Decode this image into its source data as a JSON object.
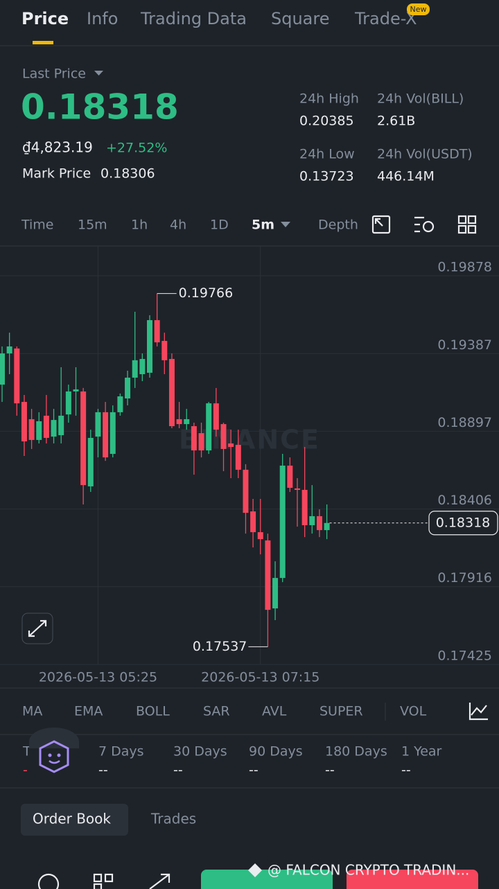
{
  "tabs": [
    "Price",
    "Info",
    "Trading Data",
    "Square",
    "Trade-X"
  ],
  "new_badge": "New",
  "ticker": {
    "last_price_label": "Last Price",
    "last_price": "0.18318",
    "fiat_price": "₫4,823.19",
    "change": "+27.52%",
    "mark_price_label": "Mark Price",
    "mark_price": "0.18306"
  },
  "stats": [
    {
      "label": "24h High",
      "value": "0.20385"
    },
    {
      "label": "24h Vol(BILL)",
      "value": "2.61B"
    },
    {
      "label": "24h Low",
      "value": "0.13723"
    },
    {
      "label": "24h Vol(USDT)",
      "value": "446.14M"
    }
  ],
  "intervals": [
    "Time",
    "15m",
    "1h",
    "4h",
    "1D",
    "5m",
    "Depth"
  ],
  "chart_data": {
    "type": "candlestick",
    "watermark": "BINANCE",
    "categories": [
      null,
      null,
      null,
      null,
      null,
      null,
      null,
      null,
      null,
      null,
      null,
      null,
      null,
      "2026-05-13 05:25",
      null,
      null,
      null,
      null,
      null,
      null,
      null,
      null,
      null,
      null,
      null,
      null,
      null,
      null,
      null,
      null,
      null,
      null,
      null,
      null,
      null,
      "2026-05-13 07:15",
      null,
      null,
      null,
      null,
      null,
      null,
      null,
      null,
      null
    ],
    "open": [
      0.19191,
      0.19388,
      0.19419,
      0.19082,
      0.18973,
      0.18842,
      0.18995,
      0.18863,
      0.18872,
      0.19003,
      0.19148,
      0.19148,
      0.18549,
      0.18863,
      0.19017,
      0.18754,
      0.19017,
      0.19104,
      0.19235,
      0.19257,
      0.19266,
      0.19598,
      0.19467,
      0.19353,
      0.18973,
      0.18942,
      0.18929,
      0.18885,
      0.18776,
      0.19073,
      0.18942,
      0.1882,
      0.18811,
      0.18654,
      0.18391,
      0.1826,
      0.18208,
      0.17779,
      0.17971,
      0.1868,
      0.18536,
      0.18527,
      0.18304,
      0.18361,
      0.18273
    ],
    "high": [
      0.19432,
      0.19519,
      0.19432,
      0.19126,
      0.19038,
      0.19017,
      0.19126,
      0.19038,
      0.19301,
      0.19191,
      0.19301,
      0.1917,
      0.18907,
      0.19038,
      0.19082,
      0.1906,
      0.19135,
      0.19279,
      0.19651,
      0.19388,
      0.19629,
      0.19766,
      0.19519,
      0.19388,
      0.19082,
      0.19038,
      0.18951,
      0.18951,
      0.19082,
      0.1917,
      0.18951,
      0.18907,
      0.18907,
      0.18689,
      0.1847,
      0.1847,
      0.18251,
      0.18076,
      0.18754,
      0.18732,
      0.18601,
      0.18798,
      0.18557,
      0.18404,
      0.18435
    ],
    "low": [
      0.19082,
      0.19257,
      0.18995,
      0.18741,
      0.18785,
      0.1882,
      0.1882,
      0.1882,
      0.1882,
      0.18951,
      0.18995,
      0.18435,
      0.18514,
      0.18732,
      0.1871,
      0.18732,
      0.18995,
      0.1906,
      0.1917,
      0.19213,
      0.19235,
      0.19432,
      0.19257,
      0.18916,
      0.18916,
      0.18907,
      0.18623,
      0.18732,
      0.18754,
      0.18863,
      0.18645,
      0.18601,
      0.18601,
      0.18251,
      0.18164,
      0.1812,
      0.17537,
      0.17705,
      0.17945,
      0.18514,
      0.18295,
      0.18229,
      0.18251,
      0.18229,
      0.18216
    ],
    "close": [
      0.19388,
      0.19432,
      0.19073,
      0.18833,
      0.18842,
      0.1896,
      0.18855,
      0.18968,
      0.18995,
      0.19148,
      0.19161,
      0.18557,
      0.18855,
      0.19017,
      0.18732,
      0.19017,
      0.19117,
      0.19235,
      0.19345,
      0.19353,
      0.19598,
      0.19458,
      0.19345,
      0.18929,
      0.18942,
      0.18973,
      0.18776,
      0.18776,
      0.19073,
      0.18907,
      0.18785,
      0.18798,
      0.18654,
      0.18382,
      0.1826,
      0.18216,
      0.1777,
      0.17971,
      0.1868,
      0.1854,
      0.18527,
      0.18304,
      0.18361,
      0.18273,
      0.18318
    ],
    "up_color": "#2ebd85",
    "down_color": "#f6465d",
    "current_price": 0.18318,
    "max_label": "0.19766",
    "min_label": "0.17537",
    "ylim": [
      0.17425,
      0.20066
    ],
    "yticks": [
      0.19878,
      0.19387,
      0.18897,
      0.18406,
      0.17916,
      0.17425
    ],
    "grid": true
  },
  "indicators": [
    "MA",
    "EMA",
    "BOLL",
    "SAR",
    "AVL",
    "SUPER",
    "VOL"
  ],
  "periods": [
    {
      "label": "T",
      "value": "-"
    },
    {
      "label": "7 Days",
      "value": "--"
    },
    {
      "label": "30 Days",
      "value": "--"
    },
    {
      "label": "90 Days",
      "value": "--"
    },
    {
      "label": "180 Days",
      "value": "--"
    },
    {
      "label": "1 Year",
      "value": "--"
    }
  ],
  "book_tabs": [
    "Order Book",
    "Trades"
  ],
  "watermark": "@ FALCON CRYPTO TRADIN..."
}
